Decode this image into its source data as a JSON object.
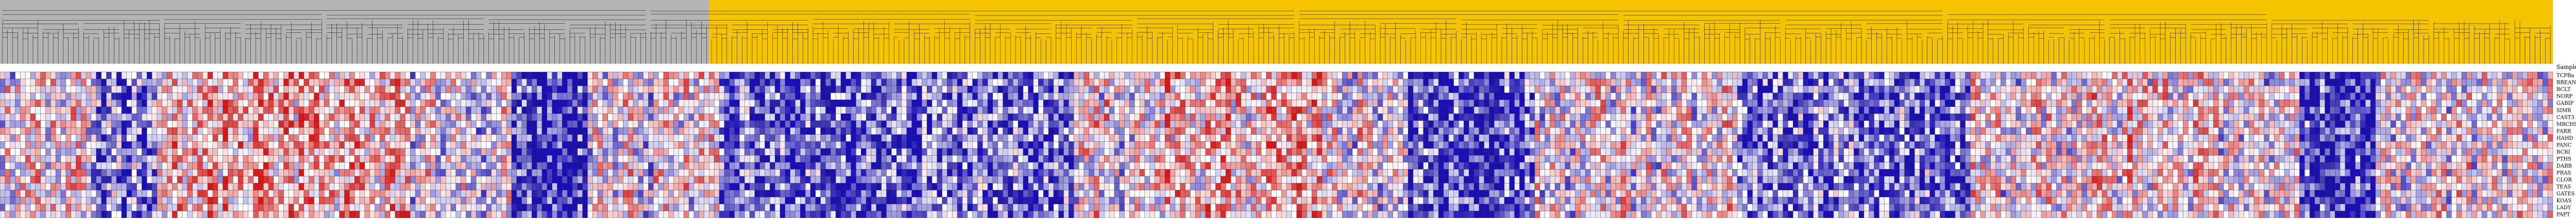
{
  "chart_data": {
    "type": "heatmap",
    "column_groups": [
      {
        "name": "",
        "color": "#b4b4b4",
        "count": 140
      },
      {
        "name": "",
        "color": "#f5c400",
        "count": 364
      }
    ],
    "row_header": "Sample Name",
    "row_labels": [
      "TCPBa",
      "BREAN",
      "BCLT",
      "NORP",
      "GABIP",
      "SIMR",
      "CAST3",
      "MRCHS",
      "FARR",
      "HAHD",
      "PANC",
      "BCRI",
      "PTHS",
      "DABB",
      "PRAS",
      "CLOR",
      "TEAS",
      "GATES",
      "KOAS",
      "LADY",
      "PAPT"
    ],
    "color_scale": {
      "low": "#1a0fb4",
      "mid": "#ffffff",
      "high": "#d81818"
    },
    "value_range": [
      -1,
      1
    ],
    "grid": true,
    "legend": "none"
  }
}
